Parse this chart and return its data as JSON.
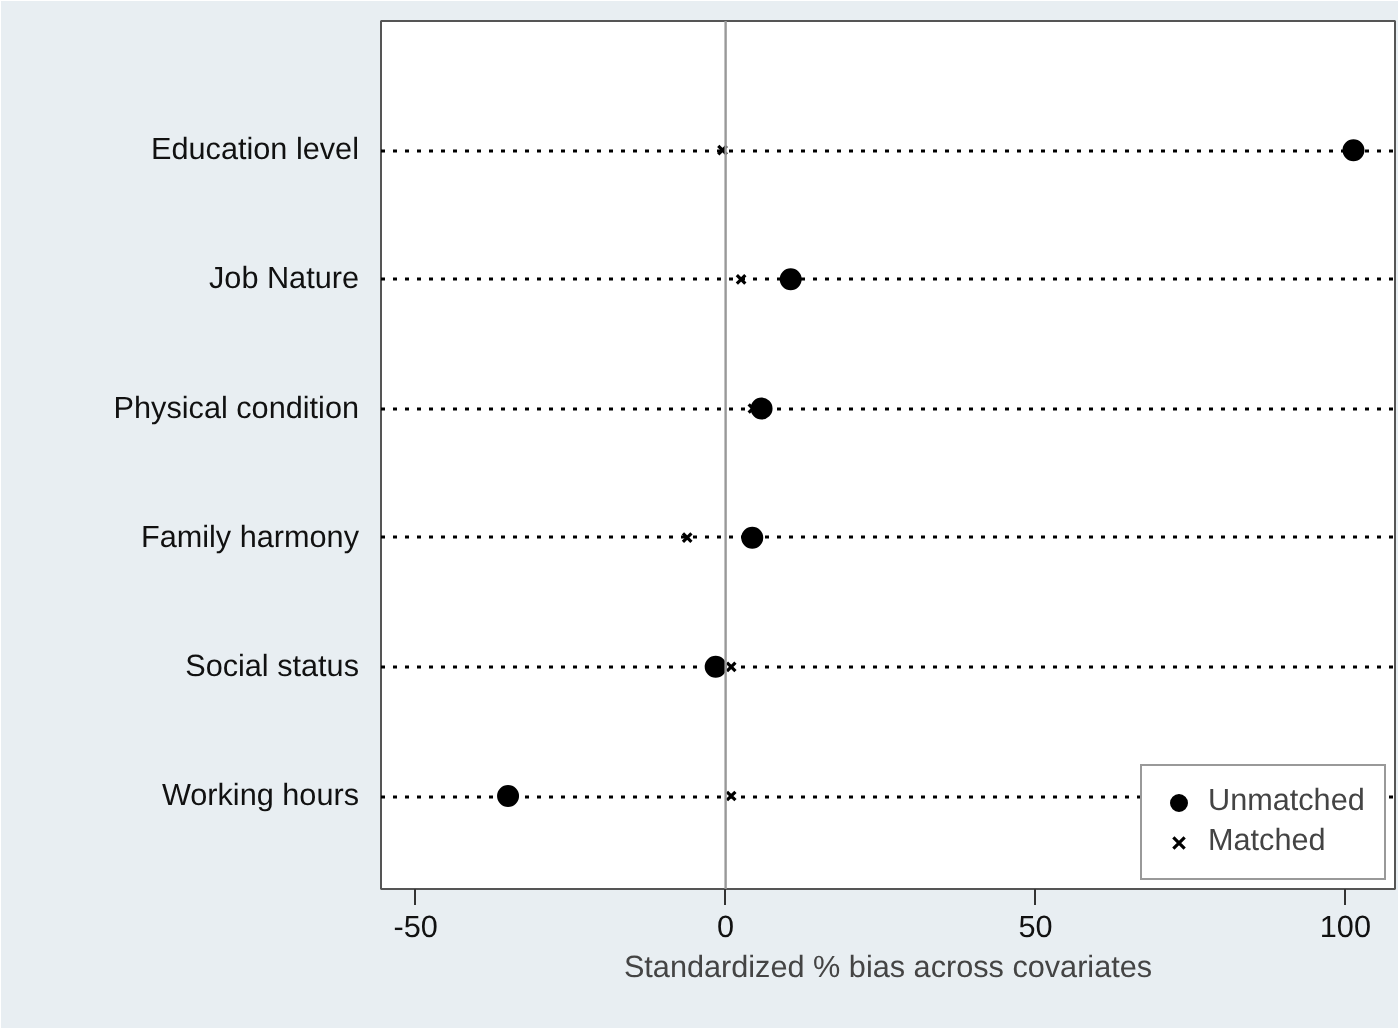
{
  "chart_data": {
    "type": "scatter",
    "xlabel": "Standardized % bias across covariates",
    "categories": [
      "Education level",
      "Job Nature",
      "Physical condition",
      "Family harmony",
      "Social status",
      "Working hours"
    ],
    "orientation": "horizontal",
    "series": [
      {
        "name": "Unmatched",
        "color": "#000000",
        "marker": "circle",
        "values": [
          101.3,
          10.5,
          5.8,
          4.3,
          -1.6,
          -35.1
        ]
      },
      {
        "name": "Matched",
        "color": "#000000",
        "marker": "cross",
        "values": [
          -0.5,
          2.5,
          4.4,
          -6.2,
          0.9,
          0.9
        ]
      }
    ],
    "xlim": [
      -55.6,
      108
    ],
    "xticks": [
      -50,
      0,
      50,
      100
    ],
    "ref_lines": [
      {
        "axis": "x",
        "value": 0,
        "color": "#999999"
      }
    ],
    "grid": "y",
    "line_style": "dotted",
    "legend": "bottom right"
  }
}
